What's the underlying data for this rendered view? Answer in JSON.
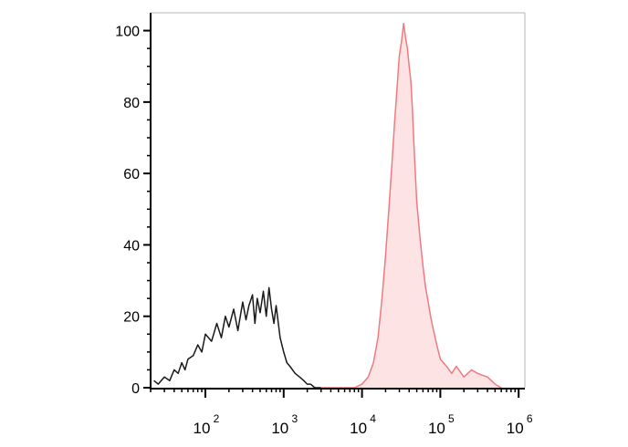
{
  "chart_data": {
    "type": "area",
    "title": "",
    "xlabel": "",
    "ylabel": "",
    "x_scale": "log",
    "xlim": [
      20,
      1200000
    ],
    "ylim": [
      0,
      105
    ],
    "grid": false,
    "legend": "none",
    "x_ticks": [
      {
        "base": "10",
        "exp": "2",
        "value": 100
      },
      {
        "base": "10",
        "exp": "3",
        "value": 1000
      },
      {
        "base": "10",
        "exp": "4",
        "value": 10000
      },
      {
        "base": "10",
        "exp": "5",
        "value": 100000
      },
      {
        "base": "10",
        "exp": "6",
        "value": 1000000
      }
    ],
    "y_ticks": [
      "0",
      "20",
      "40",
      "60",
      "80",
      "100"
    ],
    "series": [
      {
        "color": "#1a1a1a",
        "fill": "none",
        "x": [
          22,
          25,
          30,
          35,
          40,
          45,
          50,
          55,
          60,
          70,
          80,
          90,
          100,
          120,
          140,
          160,
          180,
          200,
          230,
          260,
          300,
          330,
          360,
          400,
          430,
          460,
          500,
          550,
          600,
          650,
          700,
          750,
          800,
          900,
          1000,
          1100,
          1200,
          1400,
          1600,
          1800,
          2000,
          2200,
          2500,
          3000
        ],
        "y": [
          2,
          1,
          3,
          2,
          5,
          4,
          7,
          5,
          8,
          9,
          12,
          10,
          15,
          13,
          18,
          14,
          20,
          17,
          22,
          16,
          24,
          19,
          23,
          26,
          18,
          25,
          21,
          27,
          20,
          28,
          22,
          18,
          23,
          14,
          10,
          7,
          6,
          4,
          3,
          2,
          1,
          1,
          0,
          0
        ]
      },
      {
        "color": "#f07a80",
        "fill": "#fde3e4",
        "x": [
          3000,
          5000,
          8000,
          10000,
          12000,
          14000,
          16000,
          18000,
          20000,
          22000,
          24000,
          26000,
          28000,
          30000,
          32000,
          34000,
          36000,
          38000,
          40000,
          42000,
          44000,
          46000,
          48000,
          50000,
          55000,
          60000,
          65000,
          70000,
          75000,
          80000,
          90000,
          100000,
          120000,
          140000,
          160000,
          200000,
          250000,
          300000,
          400000,
          500000,
          600000
        ],
        "y": [
          0,
          0,
          0,
          1,
          3,
          7,
          14,
          25,
          37,
          50,
          62,
          74,
          84,
          93,
          97,
          102,
          98,
          95,
          90,
          86,
          78,
          68,
          60,
          52,
          42,
          34,
          28,
          24,
          20,
          17,
          12,
          8,
          6,
          4,
          6,
          3,
          5,
          4,
          3,
          1,
          0
        ]
      }
    ]
  }
}
